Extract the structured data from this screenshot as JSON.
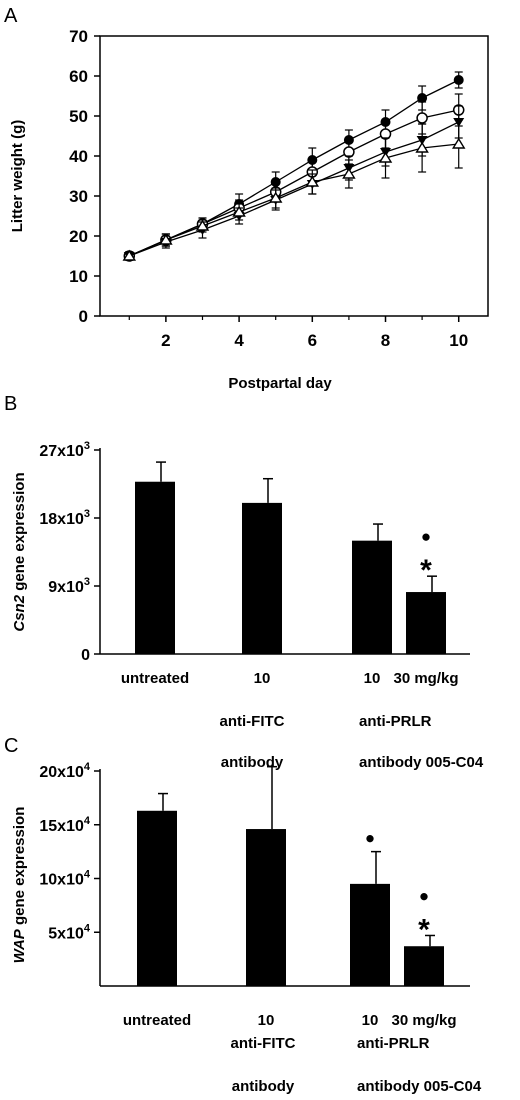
{
  "panels": {
    "a": "A",
    "b": "B",
    "c": "C"
  },
  "chart_data": [
    {
      "type": "line",
      "panel": "A",
      "xlabel": "Postpartal day",
      "ylabel": "Litter weight (g)",
      "xlim": [
        0.2,
        10.8
      ],
      "ylim": [
        0,
        70
      ],
      "xticks": [
        2,
        4,
        6,
        8,
        10
      ],
      "yticks": [
        0,
        10,
        20,
        30,
        40,
        50,
        60,
        70
      ],
      "x": [
        1,
        2,
        3,
        4,
        5,
        6,
        7,
        8,
        9,
        10
      ],
      "series": [
        {
          "marker": "filled-circle",
          "values": [
            15,
            19,
            23,
            28,
            33.5,
            39,
            44,
            48.5,
            54.5,
            59
          ],
          "errors": [
            1,
            1.5,
            1.5,
            2.5,
            2.5,
            3,
            2.5,
            3,
            3,
            2
          ]
        },
        {
          "marker": "open-circle",
          "values": [
            15,
            19,
            23,
            27,
            31,
            36,
            41,
            45.5,
            49.5,
            51.5
          ],
          "errors": [
            1,
            1.5,
            1.5,
            2,
            2.5,
            3,
            3,
            3.5,
            4,
            4
          ]
        },
        {
          "marker": "filled-triangle-down",
          "values": [
            15,
            18.5,
            21.5,
            25,
            29,
            33,
            37,
            41,
            44,
            48.5
          ],
          "errors": [
            1,
            1.5,
            2,
            2,
            2.5,
            2.5,
            3,
            3.5,
            4,
            4
          ]
        },
        {
          "marker": "open-triangle-up",
          "values": [
            15,
            19,
            22.5,
            26,
            29.5,
            33.5,
            35.5,
            39.5,
            42,
            43
          ],
          "errors": [
            1,
            1.5,
            1.5,
            2,
            2.5,
            3,
            3.5,
            5,
            6,
            6
          ]
        }
      ]
    },
    {
      "type": "bar",
      "panel": "B",
      "ylabel_italic": "Csn2",
      "ylabel_rest": " gene expression",
      "ylim": [
        0,
        27000
      ],
      "ytick_values": [
        0,
        9000,
        18000,
        27000
      ],
      "ytick_labels": [
        {
          "base": "0",
          "sup": ""
        },
        {
          "base": "9x10",
          "sup": "3"
        },
        {
          "base": "18x10",
          "sup": "3"
        },
        {
          "base": "27x10",
          "sup": "3"
        }
      ],
      "categories": [
        "untreated",
        "10",
        "10",
        "30 mg/kg"
      ],
      "values": [
        22800,
        20000,
        15000,
        8200
      ],
      "errors": [
        2600,
        3200,
        2200,
        2100
      ],
      "significance": [
        {
          "index": 3,
          "symbols": [
            "●",
            "*"
          ]
        }
      ],
      "group_labels": [
        {
          "line1": "anti-FITC",
          "line2": "antibody"
        },
        {
          "line1": "anti-PRLR",
          "line2": "antibody 005-C04"
        }
      ]
    },
    {
      "type": "bar",
      "panel": "C",
      "ylabel_italic": "WAP",
      "ylabel_rest": "  gene expression",
      "ylim": [
        0,
        200000
      ],
      "ytick_values": [
        50000,
        100000,
        150000,
        200000
      ],
      "ytick_labels": [
        {
          "base": "5x10",
          "sup": "4"
        },
        {
          "base": "10x10",
          "sup": "4"
        },
        {
          "base": "15x10",
          "sup": "4"
        },
        {
          "base": "20x10",
          "sup": "4"
        }
      ],
      "categories": [
        "untreated",
        "10",
        "10",
        "30 mg/kg"
      ],
      "values": [
        163000,
        146000,
        95000,
        37000
      ],
      "errors": [
        16000,
        58000,
        30000,
        10000
      ],
      "significance": [
        {
          "index": 2,
          "symbols": [
            "●"
          ]
        },
        {
          "index": 3,
          "symbols": [
            "●",
            "*"
          ]
        }
      ],
      "group_labels": [
        {
          "line1": "anti-FITC",
          "line2": "antibody"
        },
        {
          "line1": "anti-PRLR",
          "line2": "antibody 005-C04"
        }
      ]
    }
  ]
}
